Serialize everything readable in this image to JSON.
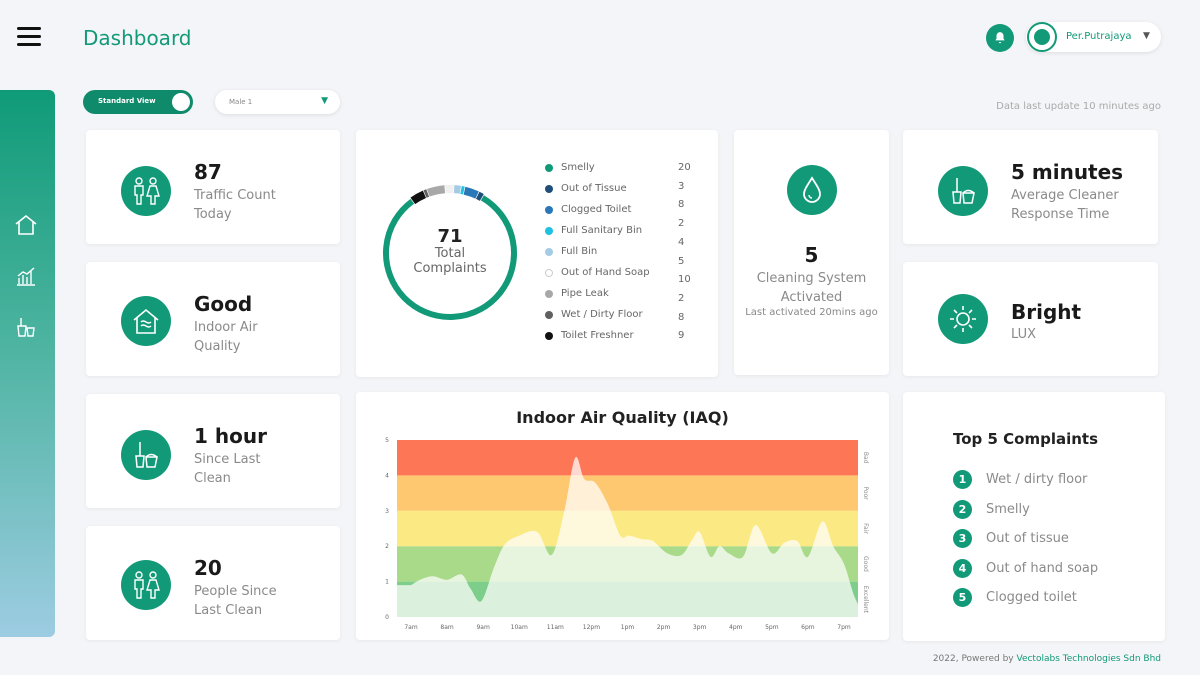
{
  "header": {
    "title": "Dashboard",
    "user_name": "Per.Putrajaya",
    "menu_icon": "hamburger-icon",
    "bell_icon": "bell-icon"
  },
  "toolbar": {
    "toggle_label": "Standard View",
    "select_value": "Male 1",
    "last_update": "Data last update 10 minutes ago"
  },
  "cards": {
    "traffic": {
      "value": "87",
      "line1": "Traffic Count",
      "line2": "Today"
    },
    "air": {
      "value": "Good",
      "line1": "Indoor Air",
      "line2": "Quality"
    },
    "since_clean": {
      "value": "1 hour",
      "line1": "Since Last",
      "line2": "Clean"
    },
    "people": {
      "value": "20",
      "line1": "People Since",
      "line2": "Last Clean"
    },
    "cleaning": {
      "value": "5",
      "line1": "Cleaning System",
      "line2": "Activated",
      "note": "Last activated 20mins ago"
    },
    "response": {
      "value": "5 minutes",
      "line1": "Average Cleaner",
      "line2": "Response Time"
    },
    "lux": {
      "value": "Bright",
      "line1": "LUX"
    }
  },
  "complaints": {
    "total": "71",
    "line1": "Total",
    "line2": "Complaints",
    "items": [
      {
        "label": "Smelly",
        "value": "20",
        "color": "#129a78"
      },
      {
        "label": "Out of Tissue",
        "value": "3",
        "color": "#1f4e79"
      },
      {
        "label": "Clogged Toilet",
        "value": "8",
        "color": "#2a78b8"
      },
      {
        "label": "Full Sanitary Bin",
        "value": "2",
        "color": "#1ec1e0"
      },
      {
        "label": "Full Bin",
        "value": "4",
        "color": "#a4cbe4"
      },
      {
        "label": "Out of Hand Soap",
        "value": "5",
        "color": "#ffffff"
      },
      {
        "label": "Pipe Leak",
        "value": "10",
        "color": "#a8a8a8"
      },
      {
        "label": "Wet / Dirty Floor",
        "value": "2",
        "color": "#606060"
      },
      {
        "label": "Toilet Freshner",
        "value": "8",
        "color": "#111111"
      }
    ],
    "extra_value": "9"
  },
  "chart_data": {
    "type": "area",
    "title": "Indoor Air Quality (IAQ)",
    "x": [
      "7am",
      "8am",
      "9am",
      "10am",
      "11am",
      "12pm",
      "1pm",
      "2pm",
      "3pm",
      "4pm",
      "5pm",
      "6pm",
      "7pm"
    ],
    "ylim": [
      0,
      5
    ],
    "yticks": [
      "0",
      "1",
      "2",
      "3",
      "4",
      "5"
    ],
    "bands": [
      {
        "label": "Excellent",
        "from": 0,
        "to": 1,
        "color": "#7dce8a"
      },
      {
        "label": "Good",
        "from": 1,
        "to": 2,
        "color": "#a9da8a"
      },
      {
        "label": "Fair",
        "from": 2,
        "to": 3,
        "color": "#fbe983"
      },
      {
        "label": "Poor",
        "from": 3,
        "to": 4,
        "color": "#fdc870"
      },
      {
        "label": "Bad",
        "from": 4,
        "to": 5,
        "color": "#fd7656"
      }
    ],
    "series": [
      {
        "values": [
          [
            0,
            0.9
          ],
          [
            0.25,
            1.05
          ],
          [
            0.6,
            1.15
          ],
          [
            1.0,
            1.05
          ],
          [
            1.4,
            1.2
          ],
          [
            1.65,
            0.8
          ],
          [
            1.95,
            0.45
          ],
          [
            2.3,
            1.4
          ],
          [
            2.6,
            2.05
          ],
          [
            3.0,
            2.3
          ],
          [
            3.5,
            2.4
          ],
          [
            3.9,
            1.75
          ],
          [
            4.25,
            3.0
          ],
          [
            4.55,
            4.5
          ],
          [
            4.8,
            3.9
          ],
          [
            5.1,
            3.8
          ],
          [
            5.45,
            3.2
          ],
          [
            5.8,
            2.3
          ],
          [
            6.05,
            2.3
          ],
          [
            6.4,
            2.2
          ],
          [
            6.7,
            2.15
          ],
          [
            7.1,
            1.8
          ],
          [
            7.5,
            1.75
          ],
          [
            7.8,
            2.2
          ],
          [
            8.0,
            2.4
          ],
          [
            8.3,
            1.7
          ],
          [
            8.55,
            2.0
          ],
          [
            8.8,
            1.8
          ],
          [
            9.2,
            1.7
          ],
          [
            9.55,
            2.6
          ],
          [
            10.0,
            1.8
          ],
          [
            10.35,
            2.1
          ],
          [
            10.7,
            2.15
          ],
          [
            11.0,
            1.7
          ],
          [
            11.4,
            2.7
          ],
          [
            11.7,
            2.0
          ],
          [
            12.0,
            1.5
          ],
          [
            12.3,
            0.55
          ],
          [
            12.6,
            0.0
          ]
        ]
      }
    ]
  },
  "top5": {
    "title": "Top 5 Complaints",
    "items": [
      {
        "rank": "1",
        "label": "Wet / dirty floor"
      },
      {
        "rank": "2",
        "label": "Smelly"
      },
      {
        "rank": "3",
        "label": "Out of tissue"
      },
      {
        "rank": "4",
        "label": "Out of hand soap"
      },
      {
        "rank": "5",
        "label": "Clogged toilet"
      }
    ]
  },
  "footer": {
    "prefix": "2022, Powered by",
    "company": "Vectolabs Technologies Sdn Bhd"
  }
}
